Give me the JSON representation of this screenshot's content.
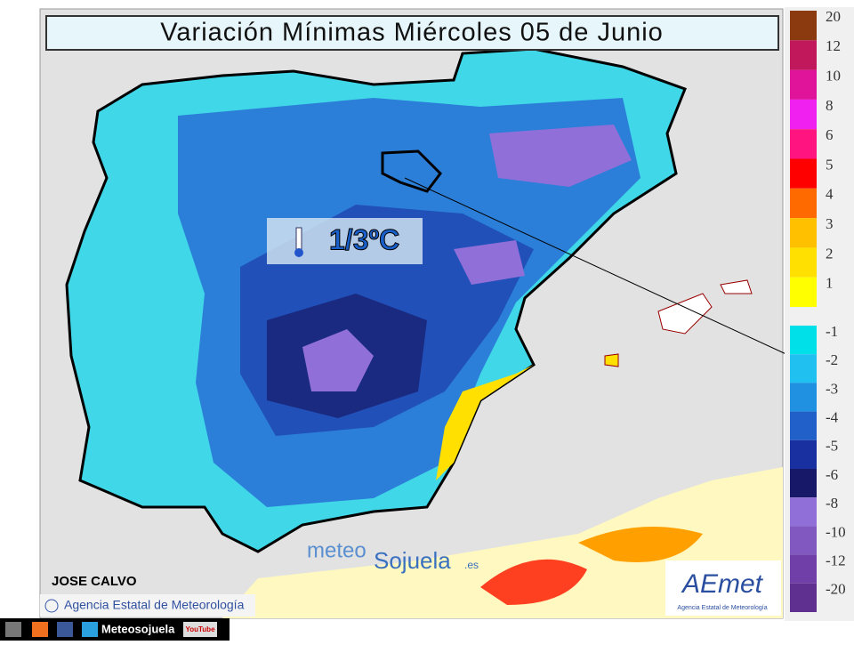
{
  "header": {
    "title": "Variación Mínimas Miércoles 05 de Junio"
  },
  "annotation": {
    "label": "1/3ºC"
  },
  "legend": {
    "warm": [
      {
        "value": 20,
        "color": "#8b3a10"
      },
      {
        "value": 12,
        "color": "#c0185a"
      },
      {
        "value": 10,
        "color": "#e0149a"
      },
      {
        "value": 8,
        "color": "#f020f0"
      },
      {
        "value": 6,
        "color": "#ff1480"
      },
      {
        "value": 5,
        "color": "#ff0000"
      },
      {
        "value": 4,
        "color": "#ff6a00"
      },
      {
        "value": 3,
        "color": "#ffc000"
      },
      {
        "value": 2,
        "color": "#ffe000"
      },
      {
        "value": 1,
        "color": "#ffff00"
      }
    ],
    "cold": [
      {
        "value": -1,
        "color": "#00e0e8"
      },
      {
        "value": -2,
        "color": "#20c0f0"
      },
      {
        "value": -3,
        "color": "#2090e0"
      },
      {
        "value": -4,
        "color": "#2060c8"
      },
      {
        "value": -5,
        "color": "#1830a0"
      },
      {
        "value": -6,
        "color": "#181868"
      },
      {
        "value": -8,
        "color": "#9070d8"
      },
      {
        "value": -10,
        "color": "#8058c0"
      },
      {
        "value": -12,
        "color": "#7040a8"
      },
      {
        "value": -20,
        "color": "#603090"
      }
    ]
  },
  "credits": {
    "author": "JOSE CALVO",
    "agency": "Agencia Estatal de Meteorología"
  },
  "watermark": {
    "part1": "meteo",
    "part2": "Sojuela",
    "part3": ".es"
  },
  "logo": {
    "name": "AEmet",
    "subtitle": "Agencia Estatal de Meteorología"
  },
  "footer": {
    "site": "Meteosojuela",
    "youtube": "YouTube"
  }
}
